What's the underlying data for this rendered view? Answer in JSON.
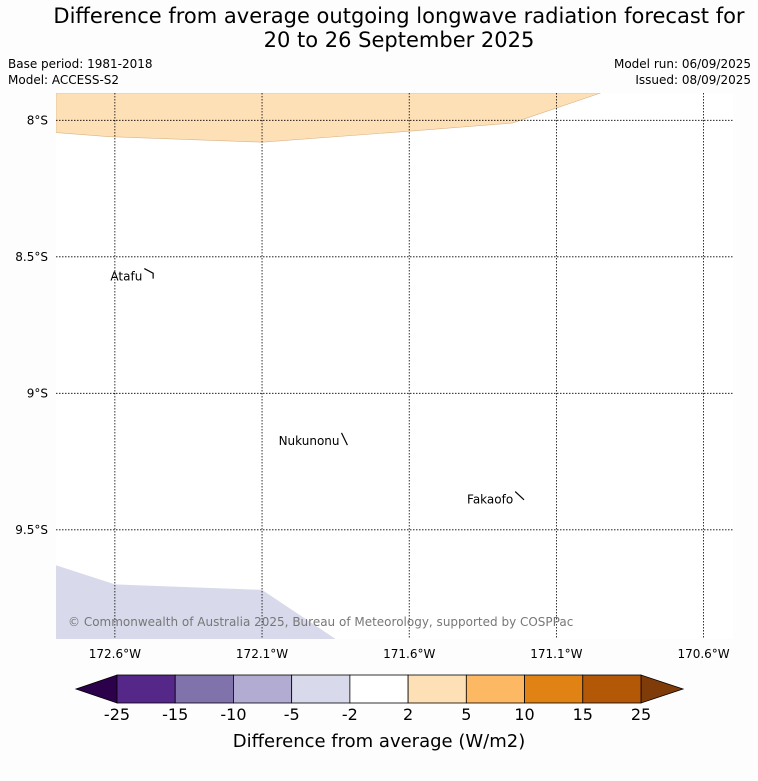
{
  "title_line1": "Difference from average outgoing longwave radiation forecast for",
  "title_line2": "20 to 26 September 2025",
  "base_period": "Base period: 1981-2018",
  "model": "Model: ACCESS-S2",
  "model_run": "Model run: 06/09/2025",
  "issued": "Issued: 08/09/2025",
  "map": {
    "lon_range": [
      -172.8,
      -170.5
    ],
    "lat_range": [
      -9.9,
      -7.9
    ],
    "lon_ticks": [
      {
        "value": -172.6,
        "label": "172.6°W"
      },
      {
        "value": -172.1,
        "label": "172.1°W"
      },
      {
        "value": -171.6,
        "label": "171.6°W"
      },
      {
        "value": -171.1,
        "label": "171.1°W"
      },
      {
        "value": -170.6,
        "label": "170.6°W"
      }
    ],
    "lat_ticks": [
      {
        "value": -8.0,
        "label": "8°S"
      },
      {
        "value": -8.5,
        "label": "8.5°S"
      },
      {
        "value": -9.0,
        "label": "9°S"
      },
      {
        "value": -9.5,
        "label": "9.5°S"
      }
    ],
    "islands": [
      {
        "name": "Atafu",
        "coast": [
          [
            -172.5,
            -8.543
          ],
          [
            -172.47,
            -8.56
          ],
          [
            -172.47,
            -8.58
          ]
        ]
      },
      {
        "name": "Nukunonu",
        "coast": [
          [
            -171.83,
            -9.145
          ],
          [
            -171.81,
            -9.19
          ]
        ]
      },
      {
        "name": "Fakaofo",
        "coast": [
          [
            -171.24,
            -9.36
          ],
          [
            -171.21,
            -9.39
          ]
        ]
      }
    ],
    "anomaly_regions": [
      {
        "category": "2 to 5",
        "color": "#fee0b6",
        "polygon": [
          [
            -172.8,
            -7.9
          ],
          [
            -170.95,
            -7.9
          ],
          [
            -171.25,
            -8.01
          ],
          [
            -171.6,
            -8.04
          ],
          [
            -172.1,
            -8.08
          ],
          [
            -172.62,
            -8.06
          ],
          [
            -172.8,
            -8.045
          ]
        ]
      },
      {
        "category": "-5 to -2",
        "color": "#d8daeb",
        "polygon": [
          [
            -172.8,
            -9.63
          ],
          [
            -172.6,
            -9.7
          ],
          [
            -172.1,
            -9.72
          ],
          [
            -171.85,
            -9.9
          ],
          [
            -172.8,
            -9.9
          ]
        ]
      }
    ],
    "copyright": "© Commonwealth of Australia 2025, Bureau of Meteorology, supported by COSPPac"
  },
  "colorbar": {
    "title": "Difference from average (W/m2)",
    "boundaries": [
      "-25",
      "-15",
      "-10",
      "-5",
      "-2",
      "2",
      "5",
      "10",
      "15",
      "25"
    ],
    "low_extend_color": "#2d004b",
    "high_extend_color": "#7f3b08",
    "colors": [
      "#542788",
      "#8073ac",
      "#b2abd2",
      "#d8daeb",
      "#ffffff",
      "#fee0b6",
      "#fdb863",
      "#e08214",
      "#b35806"
    ]
  }
}
